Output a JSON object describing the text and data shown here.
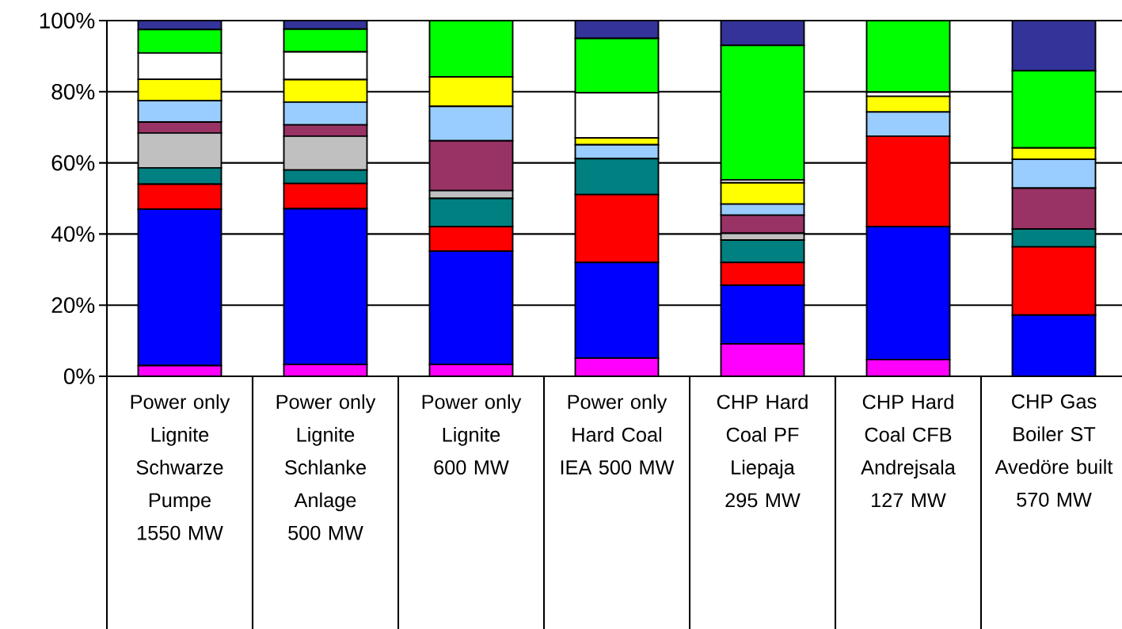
{
  "chart_data": {
    "type": "bar",
    "stacked": true,
    "grid": "y",
    "categories": [
      "Power only Lignite Schwarze Pumpe 1550 MW",
      "Power only Lignite Schlanke Anlage 500 MW",
      "Power only Lignite 600 MW",
      "Power only Hard Coal IEA 500 MW",
      "CHP Hard Coal PF Liepaja 295 MW",
      "CHP Hard Coal CFB Andrejsala 127 MW",
      "CHP Gas Boiler ST Avedöre built 570 MW"
    ],
    "ylim": [
      0,
      100
    ],
    "yticks": [
      {
        "value": 0,
        "label": "0%"
      },
      {
        "value": 20,
        "label": "20%"
      },
      {
        "value": 40,
        "label": "40%"
      },
      {
        "value": 60,
        "label": "60%"
      },
      {
        "value": 80,
        "label": "80%"
      },
      {
        "value": 100,
        "label": "100%"
      }
    ],
    "series": [
      {
        "color": "#ff00ff",
        "values": [
          3,
          3.3,
          3.3,
          5.1,
          9.1,
          4.7,
          0
        ]
      },
      {
        "color": "#0000ff",
        "values": [
          44,
          43.8,
          31.9,
          26.9,
          16.5,
          37.4,
          17.2
        ]
      },
      {
        "color": "#ff0000",
        "values": [
          7,
          7.1,
          6.9,
          19.1,
          6.4,
          25.4,
          19.2
        ]
      },
      {
        "color": "#008080",
        "values": [
          4.6,
          3.8,
          7.9,
          10.1,
          6.3,
          0,
          5.0
        ]
      },
      {
        "color": "#c0c0c0",
        "values": [
          9.8,
          9.5,
          2.2,
          0,
          1.9,
          0,
          0
        ]
      },
      {
        "color": "#993366",
        "values": [
          3.1,
          3.2,
          14,
          0,
          5.1,
          0,
          11.5
        ]
      },
      {
        "color": "#99ccff",
        "values": [
          6,
          6.4,
          9.7,
          3.9,
          3.1,
          6.8,
          8.1
        ]
      },
      {
        "color": "#ffff00",
        "values": [
          6,
          6.3,
          8.3,
          1.9,
          6.0,
          4.4,
          3.2
        ]
      },
      {
        "color": "#ffffff",
        "values": [
          7.4,
          7.8,
          0,
          12.7,
          0.8,
          1.2,
          0
        ]
      },
      {
        "color": "#00ff00",
        "values": [
          6.6,
          6.4,
          15.8,
          15.3,
          37.8,
          20.1,
          21.7
        ]
      },
      {
        "color": "#333399",
        "values": [
          2.5,
          2.4,
          0,
          5.0,
          7.0,
          0,
          14.1
        ]
      }
    ]
  }
}
